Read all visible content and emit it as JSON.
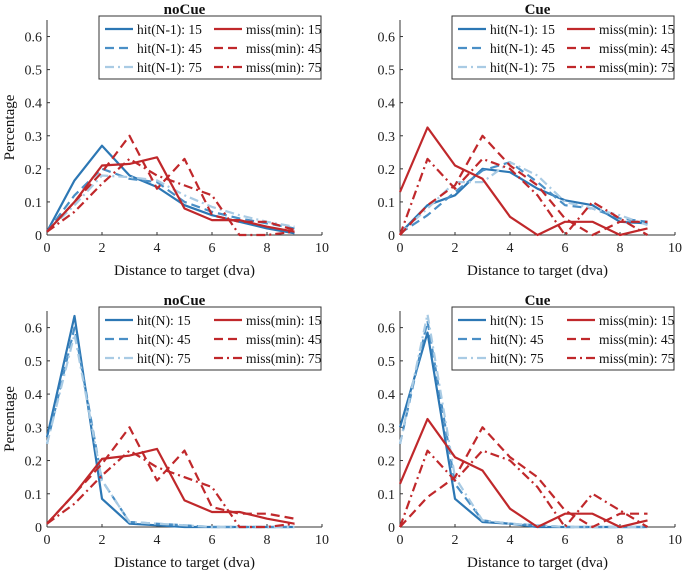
{
  "colors": {
    "hit15": "#2c77b4",
    "hit45": "#4a8fc6",
    "hit75": "#a9cbe4",
    "miss15": "#c0282b",
    "miss45": "#c0282b",
    "miss75": "#c0282b"
  },
  "chart_data": [
    {
      "type": "line",
      "title": "noCue",
      "xlabel": "Distance to target (dva)",
      "ylabel": "Percentage",
      "xlim": [
        0,
        10
      ],
      "ylim": [
        0,
        0.65
      ],
      "xticks": [
        "0",
        "2",
        "4",
        "6",
        "8",
        "10"
      ],
      "yticks": [
        "0",
        "0.1",
        "0.2",
        "0.3",
        "0.4",
        "0.5",
        "0.6"
      ],
      "x": [
        0,
        1,
        2,
        3,
        4,
        5,
        6,
        7,
        8,
        9
      ],
      "series": [
        {
          "name": "hit(N-1): 15",
          "key": "hit15",
          "dash": "solid",
          "values": [
            0.01,
            0.165,
            0.27,
            0.18,
            0.145,
            0.09,
            0.06,
            0.04,
            0.02,
            0.005
          ]
        },
        {
          "name": "hit(N-1): 45",
          "key": "hit45",
          "dash": "dashed",
          "values": [
            0.01,
            0.12,
            0.2,
            0.17,
            0.16,
            0.1,
            0.07,
            0.05,
            0.035,
            0.02
          ]
        },
        {
          "name": "hit(N-1): 75",
          "key": "hit75",
          "dash": "dashdot",
          "values": [
            0.01,
            0.09,
            0.18,
            0.175,
            0.165,
            0.12,
            0.085,
            0.06,
            0.04,
            0.025
          ]
        },
        {
          "name": "miss(min): 15",
          "key": "miss15",
          "dash": "solid",
          "values": [
            0.01,
            0.1,
            0.21,
            0.215,
            0.235,
            0.08,
            0.045,
            0.045,
            0.025,
            0.01
          ]
        },
        {
          "name": "miss(min): 45",
          "key": "miss45",
          "dash": "dashed",
          "values": [
            0.01,
            0.1,
            0.19,
            0.3,
            0.14,
            0.23,
            0.06,
            0.04,
            0.04,
            0.015
          ]
        },
        {
          "name": "miss(min): 75",
          "key": "miss75",
          "dash": "dashdot",
          "values": [
            0.01,
            0.07,
            0.155,
            0.23,
            0.18,
            0.15,
            0.12,
            0.0,
            0.0,
            0.01
          ]
        }
      ]
    },
    {
      "type": "line",
      "title": "Cue",
      "xlabel": "Distance to target (dva)",
      "ylabel": "",
      "xlim": [
        0,
        10
      ],
      "ylim": [
        0,
        0.65
      ],
      "xticks": [
        "0",
        "2",
        "4",
        "6",
        "8",
        "10"
      ],
      "yticks": [
        "0",
        "0.1",
        "0.2",
        "0.3",
        "0.4",
        "0.5",
        "0.6"
      ],
      "x": [
        0,
        1,
        2,
        3,
        4,
        5,
        6,
        7,
        8,
        9
      ],
      "series": [
        {
          "name": "hit(N-1): 15",
          "key": "hit15",
          "dash": "solid",
          "values": [
            0.005,
            0.09,
            0.12,
            0.2,
            0.19,
            0.14,
            0.105,
            0.09,
            0.04,
            0.035
          ]
        },
        {
          "name": "hit(N-1): 45",
          "key": "hit45",
          "dash": "dashed",
          "values": [
            0.005,
            0.06,
            0.13,
            0.195,
            0.22,
            0.16,
            0.09,
            0.08,
            0.05,
            0.04
          ]
        },
        {
          "name": "hit(N-1): 75",
          "key": "hit75",
          "dash": "dashdot",
          "values": [
            0.005,
            0.08,
            0.16,
            0.16,
            0.22,
            0.18,
            0.1,
            0.08,
            0.06,
            0.03
          ]
        },
        {
          "name": "miss(min): 15",
          "key": "miss15",
          "dash": "solid",
          "values": [
            0.13,
            0.325,
            0.21,
            0.17,
            0.055,
            0.0,
            0.04,
            0.04,
            0.0,
            0.02
          ]
        },
        {
          "name": "miss(min): 45",
          "key": "miss45",
          "dash": "dashed",
          "values": [
            0.0,
            0.09,
            0.15,
            0.3,
            0.21,
            0.15,
            0.05,
            0.0,
            0.04,
            0.04
          ]
        },
        {
          "name": "miss(min): 75",
          "key": "miss75",
          "dash": "dashdot",
          "values": [
            0.0,
            0.23,
            0.14,
            0.23,
            0.2,
            0.12,
            0.0,
            0.1,
            0.05,
            0.0
          ]
        }
      ]
    },
    {
      "type": "line",
      "title": "noCue",
      "xlabel": "Distance to target (dva)",
      "ylabel": "Percentage",
      "xlim": [
        0,
        10
      ],
      "ylim": [
        0,
        0.65
      ],
      "xticks": [
        "0",
        "2",
        "4",
        "6",
        "8",
        "10"
      ],
      "yticks": [
        "0",
        "0.1",
        "0.2",
        "0.3",
        "0.4",
        "0.5",
        "0.6"
      ],
      "x": [
        0,
        1,
        2,
        3,
        4,
        5,
        6,
        7,
        8,
        9
      ],
      "series": [
        {
          "name": "hit(N): 15",
          "key": "hit15",
          "dash": "solid",
          "values": [
            0.27,
            0.635,
            0.085,
            0.01,
            0.005,
            0.0,
            0.0,
            0.0,
            0.0,
            0.0
          ]
        },
        {
          "name": "hit(N): 45",
          "key": "hit45",
          "dash": "dashed",
          "values": [
            0.25,
            0.6,
            0.14,
            0.015,
            0.01,
            0.005,
            0.0,
            0.0,
            0.0,
            0.0
          ]
        },
        {
          "name": "hit(N): 75",
          "key": "hit75",
          "dash": "dashdot",
          "values": [
            0.25,
            0.58,
            0.14,
            0.015,
            0.01,
            0.005,
            0.0,
            0.0,
            0.0,
            0.0
          ]
        },
        {
          "name": "miss(min): 15",
          "key": "miss15",
          "dash": "solid",
          "values": [
            0.01,
            0.1,
            0.205,
            0.215,
            0.235,
            0.08,
            0.045,
            0.045,
            0.025,
            0.01
          ]
        },
        {
          "name": "miss(min): 45",
          "key": "miss45",
          "dash": "dashed",
          "values": [
            0.01,
            0.1,
            0.19,
            0.3,
            0.14,
            0.23,
            0.06,
            0.04,
            0.04,
            0.025
          ]
        },
        {
          "name": "miss(min): 75",
          "key": "miss75",
          "dash": "dashdot",
          "values": [
            0.01,
            0.07,
            0.155,
            0.23,
            0.18,
            0.15,
            0.12,
            0.0,
            0.0,
            0.01
          ]
        }
      ]
    },
    {
      "type": "line",
      "title": "Cue",
      "xlabel": "Distance to target (dva)",
      "ylabel": "",
      "xlim": [
        0,
        10
      ],
      "ylim": [
        0,
        0.65
      ],
      "xticks": [
        "0",
        "2",
        "4",
        "6",
        "8",
        "10"
      ],
      "yticks": [
        "0",
        "0.1",
        "0.2",
        "0.3",
        "0.4",
        "0.5",
        "0.6"
      ],
      "x": [
        0,
        1,
        2,
        3,
        4,
        5,
        6,
        7,
        8,
        9
      ],
      "series": [
        {
          "name": "hit(N): 15",
          "key": "hit15",
          "dash": "solid",
          "values": [
            0.3,
            0.585,
            0.085,
            0.015,
            0.01,
            0.0,
            0.0,
            0.0,
            0.0,
            0.0
          ]
        },
        {
          "name": "hit(N): 45",
          "key": "hit45",
          "dash": "dashed",
          "values": [
            0.25,
            0.62,
            0.13,
            0.02,
            0.01,
            0.005,
            0.0,
            0.0,
            0.0,
            0.0
          ]
        },
        {
          "name": "hit(N): 75",
          "key": "hit75",
          "dash": "dashdot",
          "values": [
            0.25,
            0.64,
            0.15,
            0.02,
            0.01,
            0.005,
            0.0,
            0.0,
            0.0,
            0.0
          ]
        },
        {
          "name": "miss(min): 15",
          "key": "miss15",
          "dash": "solid",
          "values": [
            0.13,
            0.325,
            0.21,
            0.17,
            0.055,
            0.0,
            0.04,
            0.04,
            0.0,
            0.02
          ]
        },
        {
          "name": "miss(min): 45",
          "key": "miss45",
          "dash": "dashed",
          "values": [
            0.0,
            0.09,
            0.15,
            0.3,
            0.21,
            0.15,
            0.05,
            0.0,
            0.04,
            0.04
          ]
        },
        {
          "name": "miss(min): 75",
          "key": "miss75",
          "dash": "dashdot",
          "values": [
            0.0,
            0.23,
            0.14,
            0.23,
            0.2,
            0.12,
            0.0,
            0.1,
            0.05,
            0.0
          ]
        }
      ]
    }
  ]
}
